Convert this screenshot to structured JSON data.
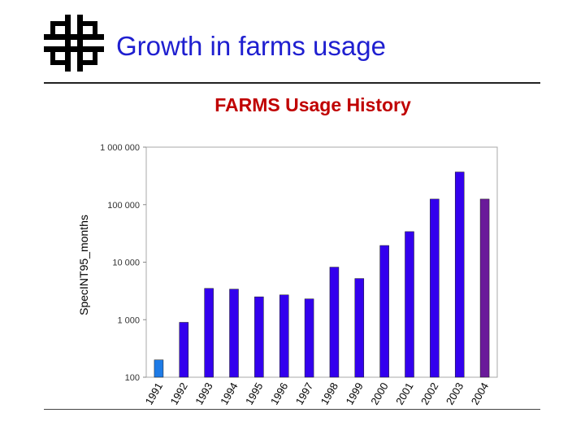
{
  "slide": {
    "title": "Growth in farms usage",
    "logo_icon": "fermilab-logo-icon"
  },
  "chart_data": {
    "type": "bar",
    "title": "FARMS Usage History",
    "xlabel": "",
    "ylabel": "SpecINT95_months",
    "yscale": "log",
    "ylim": [
      100,
      1000000
    ],
    "ytick_values": [
      100,
      1000,
      10000,
      100000,
      1000000
    ],
    "ytick_labels": [
      "100",
      "1 000",
      "10 000",
      "100 000",
      "1 000 000"
    ],
    "categories": [
      "1991",
      "1992",
      "1993",
      "1994",
      "1995",
      "1996",
      "1997",
      "1998",
      "1999",
      "2000",
      "2001",
      "2002",
      "2003",
      "2004"
    ],
    "values": [
      200,
      900,
      3500,
      3400,
      2500,
      2700,
      2300,
      8200,
      5200,
      19500,
      34000,
      125000,
      370000,
      125000
    ],
    "colors": [
      "#1e7be6",
      "#3300ee",
      "#3300ee",
      "#3300ee",
      "#3300ee",
      "#3300ee",
      "#3300ee",
      "#3300ee",
      "#3300ee",
      "#3300ee",
      "#3300ee",
      "#3300ee",
      "#3300ee",
      "#6a1a9a"
    ],
    "grid": false
  }
}
